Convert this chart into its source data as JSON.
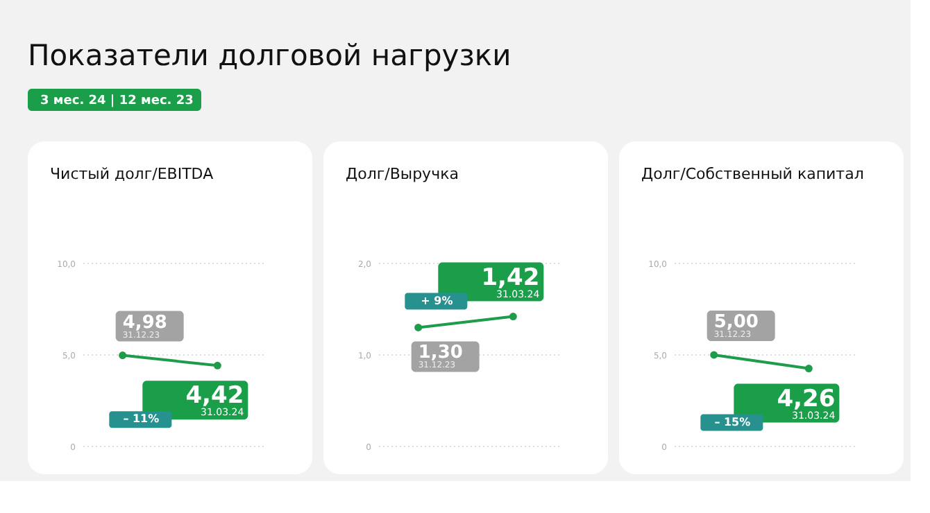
{
  "chart_data": [
    {
      "type": "other",
      "title": "Показатели долговой нагрузки",
      "annotations": [
        "3 мес. 24 | 12 мес. 23"
      ]
    },
    {
      "type": "line",
      "title": "Чистый долг/EBITDA",
      "categories": [
        null,
        null
      ],
      "series": [
        {
          "color": "#1e9b4b",
          "values": [
            4.98,
            4.42
          ],
          "value_labels": [
            "4,98",
            "4,42"
          ]
        }
      ],
      "ylim": [
        0,
        10
      ],
      "yticks": [
        0,
        {
          "value": 5,
          "label": "5,0"
        },
        {
          "value": 10,
          "label": "10,0"
        }
      ],
      "grid": "y",
      "marker": "circle",
      "annotations": [
        "31.12.23",
        "31.03.24",
        "– 11%"
      ]
    },
    {
      "type": "line",
      "title": "Долг/Выручка",
      "categories": [
        null,
        null
      ],
      "series": [
        {
          "color": "#1e9b4b",
          "values": [
            1.3,
            1.42
          ],
          "value_labels": [
            "1,30",
            "1,42"
          ]
        }
      ],
      "ylim": [
        0,
        2
      ],
      "yticks": [
        0,
        {
          "value": 1,
          "label": "1,0"
        },
        {
          "value": 2,
          "label": "2,0"
        }
      ],
      "grid": "y",
      "marker": "circle",
      "annotations": [
        "31.12.23",
        "31.03.24",
        "+ 9%"
      ]
    },
    {
      "type": "line",
      "title": "Долг/Собственный капитал",
      "categories": [
        null,
        null
      ],
      "series": [
        {
          "color": "#1e9b4b",
          "values": [
            5.0,
            4.26
          ],
          "value_labels": [
            "5,00",
            "4,26"
          ]
        }
      ],
      "ylim": [
        0,
        10
      ],
      "yticks": [
        0,
        {
          "value": 5,
          "label": "5,0"
        },
        {
          "value": 10,
          "label": "10,0"
        }
      ],
      "grid": "y",
      "marker": "circle",
      "annotations": [
        "31.12.23",
        "31.03.24",
        "– 15%"
      ]
    }
  ]
}
